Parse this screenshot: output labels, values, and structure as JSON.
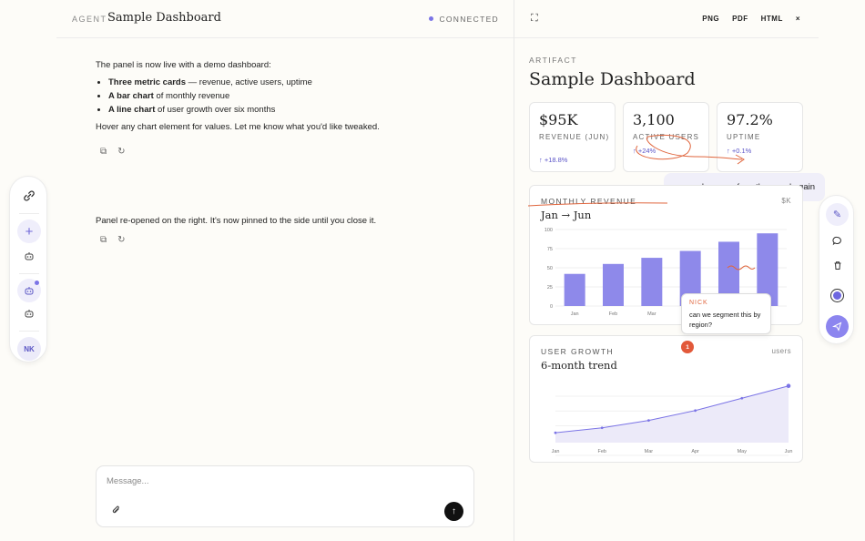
{
  "left_rail": {
    "logo_icon": "link-icon",
    "items": [
      "plus-icon",
      "robot-icon",
      "robot-icon",
      "robot-icon"
    ],
    "avatar": "NK"
  },
  "chat": {
    "header": {
      "agent_label": "AGENT",
      "title": "Sample Dashboard",
      "status": "CONNECTED"
    },
    "messages": {
      "intro": "The panel is now live with a demo dashboard:",
      "bullets": [
        {
          "bold": "Three metric cards",
          "rest": " — revenue, active users, uptime"
        },
        {
          "bold": "A bar chart",
          "rest": " of monthly revenue"
        },
        {
          "bold": "A line chart",
          "rest": " of user growth over six months"
        }
      ],
      "outro": "Hover any chart element for values. Let me know what you'd like tweaked.",
      "user": "sorry, please surface the panel again",
      "reply": "Panel re-opened on the right. It's now pinned to the side until you close it."
    },
    "composer": {
      "placeholder": "Message..."
    }
  },
  "artifact": {
    "header": {
      "exports": [
        "PNG",
        "PDF",
        "HTML"
      ],
      "close": "×"
    },
    "label": "ARTIFACT",
    "title": "Sample Dashboard",
    "metrics": [
      {
        "value": "$95K",
        "label": "REVENUE (JUN)",
        "trend": "↑ +18.8%"
      },
      {
        "value": "3,100",
        "label": "ACTIVE USERS",
        "trend": "↑ +24%"
      },
      {
        "value": "97.2%",
        "label": "UPTIME",
        "trend": "↑ +0.1%"
      }
    ],
    "revenue_panel": {
      "label": "MONTHLY REVENUE",
      "unit": "$K",
      "subtitle": "Jan → Jun"
    },
    "growth_panel": {
      "label": "USER GROWTH",
      "unit": "users",
      "subtitle": "6-month trend"
    },
    "comment": {
      "author": "NICK",
      "text": "can we segment this by region?",
      "pin": "1"
    }
  },
  "colors": {
    "accent": "#7b74e6",
    "bar": "#8e89ea",
    "annotation": "#e0663e"
  },
  "chart_data": [
    {
      "type": "bar",
      "title": "MONTHLY REVENUE",
      "subtitle": "Jan → Jun",
      "categories": [
        "Jan",
        "Feb",
        "Mar",
        "Apr",
        "May",
        "Jun"
      ],
      "values": [
        42,
        55,
        63,
        72,
        84,
        95
      ],
      "ylim": [
        0,
        100
      ],
      "yticks": [
        0,
        25,
        50,
        75,
        100
      ],
      "ylabel": "$K",
      "grid": true
    },
    {
      "type": "area",
      "title": "USER GROWTH",
      "subtitle": "6-month trend",
      "categories": [
        "Jan",
        "Feb",
        "Mar",
        "Apr",
        "May",
        "Jun"
      ],
      "values": [
        1200,
        1400,
        1700,
        2100,
        2600,
        3100
      ],
      "ylim": [
        800,
        3200
      ],
      "ylabel": "users",
      "grid": true
    }
  ]
}
